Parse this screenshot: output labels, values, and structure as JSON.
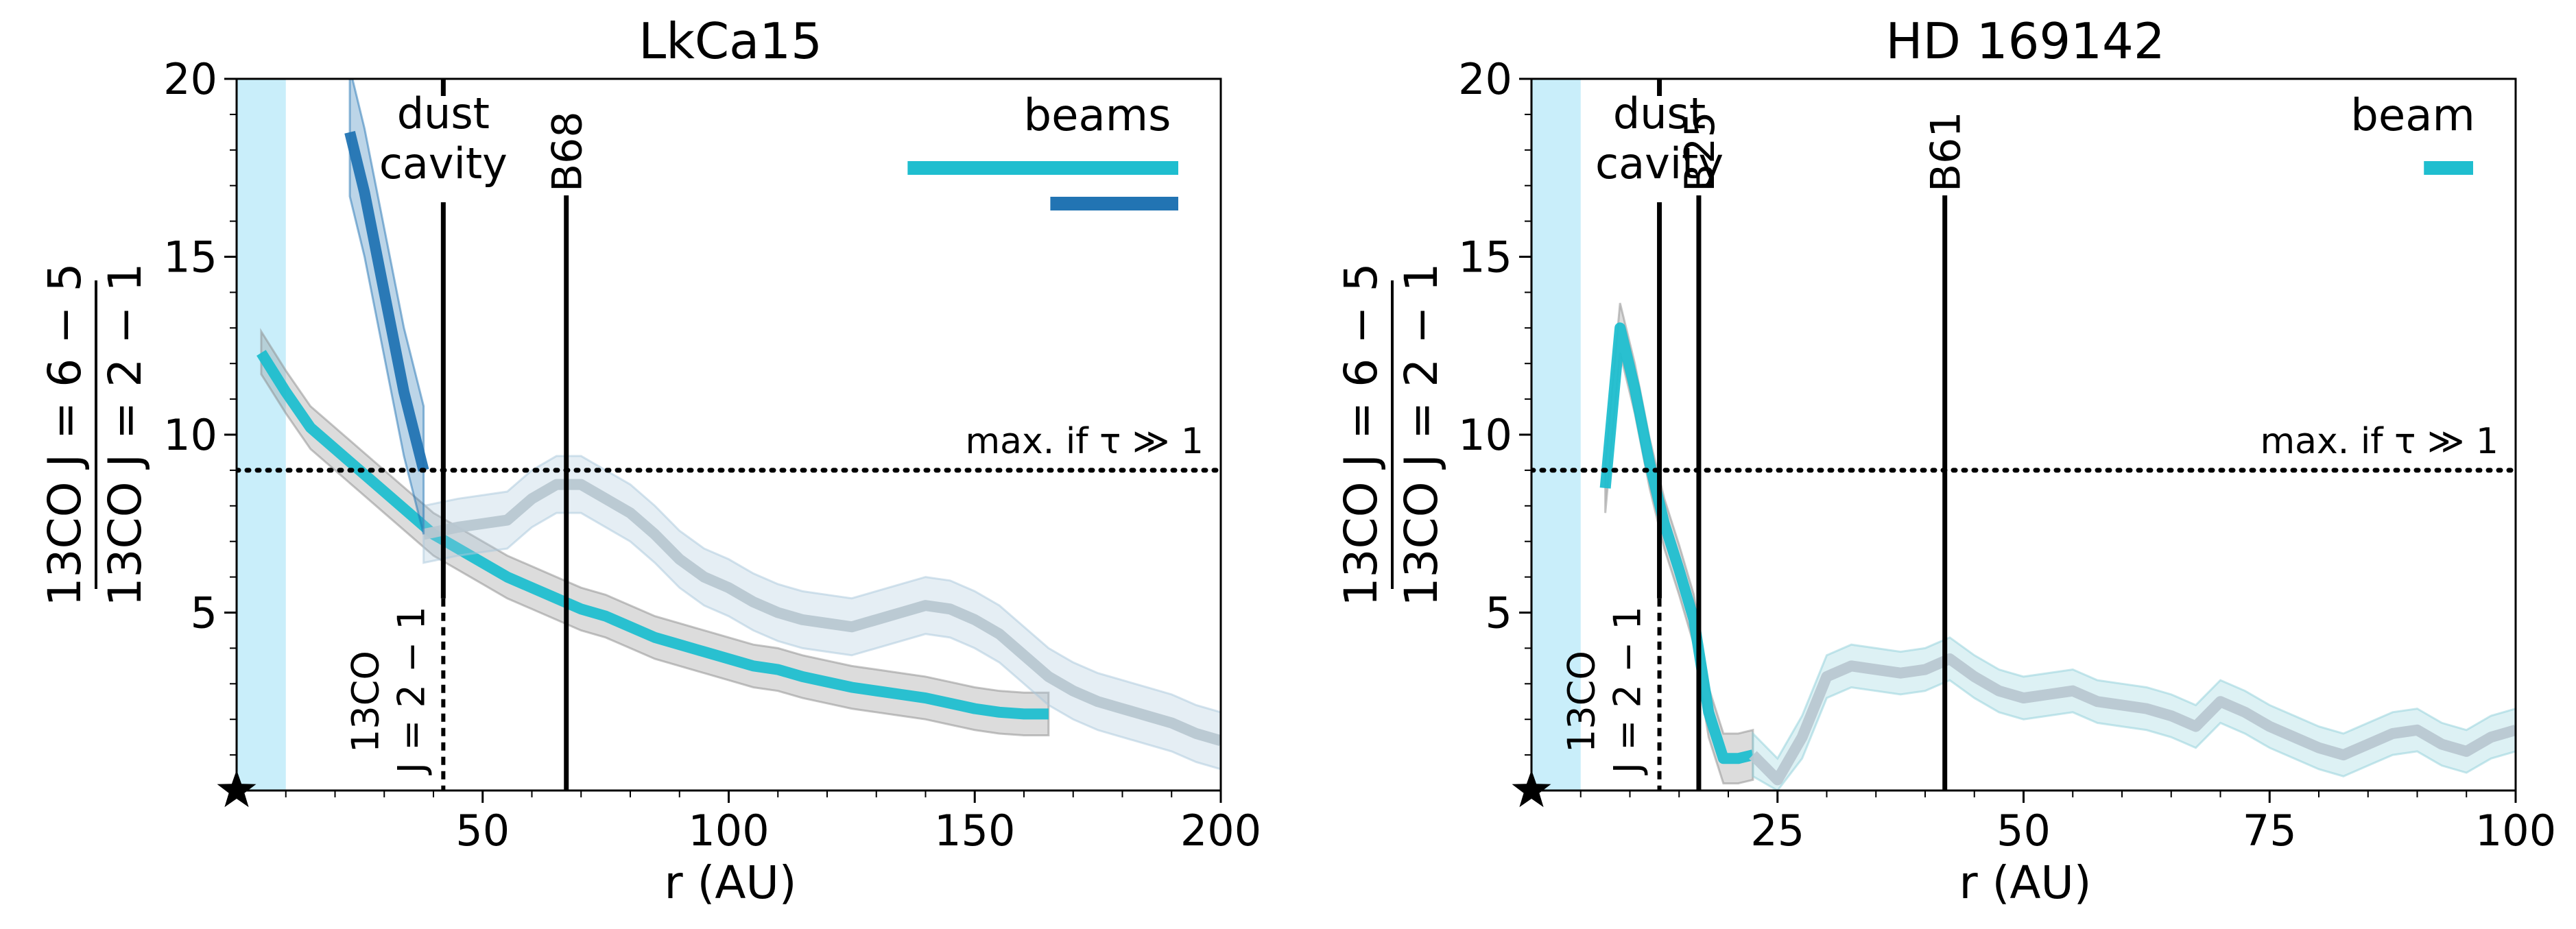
{
  "chart_data": [
    {
      "type": "line",
      "title": "LkCa15",
      "xlabel": "r (AU)",
      "ylabel_num": "13CO J = 6 − 5",
      "ylabel_den": "13CO J = 2 − 1",
      "xlim": [
        0,
        200
      ],
      "ylim": [
        0,
        20
      ],
      "xticks": [
        50,
        100,
        150,
        200
      ],
      "yticks": [
        5,
        10,
        15,
        20
      ],
      "shaded_region": {
        "x": [
          0,
          10
        ],
        "color": "#c9eefa"
      },
      "threshold": {
        "y": 9,
        "label": "max. if τ ≫ 1"
      },
      "beams_label": "beams",
      "beams": [
        {
          "width_au": 55,
          "color": "#1fbecf"
        },
        {
          "width_au": 26,
          "color": "#2274b3"
        }
      ],
      "annotations": [
        {
          "x": 42,
          "label_top": "dust cavity",
          "label_bottom": "13CO J = 2 − 1",
          "style": "solid-dotted"
        },
        {
          "x": 67,
          "label_top": "B68",
          "style": "solid"
        }
      ],
      "series": [
        {
          "name": "high-res cyan",
          "color": "#1fbecf",
          "band_color": "#8c8c8c",
          "x": [
            5,
            10,
            15,
            20,
            25,
            30,
            35,
            40,
            45,
            50,
            55,
            60,
            65,
            70,
            75,
            80,
            85,
            90,
            95,
            100,
            105,
            110,
            115,
            120,
            125,
            130,
            135,
            140,
            145,
            150,
            155,
            160,
            165
          ],
          "y": [
            12.3,
            11.2,
            10.2,
            9.6,
            9.0,
            8.4,
            7.8,
            7.2,
            6.8,
            6.4,
            6.0,
            5.7,
            5.4,
            5.1,
            4.9,
            4.6,
            4.3,
            4.1,
            3.9,
            3.7,
            3.5,
            3.4,
            3.2,
            3.05,
            2.9,
            2.8,
            2.7,
            2.6,
            2.45,
            2.3,
            2.2,
            2.15,
            2.15
          ],
          "err": 0.6
        },
        {
          "name": "low-res continuation",
          "color": "#b8c7d1",
          "band_color": "#a9c7dc",
          "x": [
            38,
            45,
            50,
            55,
            60,
            65,
            70,
            75,
            80,
            85,
            90,
            95,
            100,
            105,
            110,
            115,
            120,
            125,
            130,
            135,
            140,
            145,
            150,
            155,
            160,
            165,
            170,
            175,
            180,
            185,
            190,
            195,
            200
          ],
          "y": [
            7.2,
            7.4,
            7.5,
            7.6,
            8.2,
            8.6,
            8.6,
            8.2,
            7.8,
            7.2,
            6.5,
            6.0,
            5.7,
            5.3,
            5.0,
            4.8,
            4.7,
            4.6,
            4.8,
            5.0,
            5.2,
            5.1,
            4.8,
            4.4,
            3.8,
            3.2,
            2.8,
            2.5,
            2.3,
            2.1,
            1.9,
            1.6,
            1.4
          ],
          "err": 0.8
        },
        {
          "name": "low-res blue",
          "color": "#2274b3",
          "band_color": "#2274b3",
          "x": [
            23,
            26,
            30,
            34,
            38
          ],
          "y": [
            18.5,
            16.8,
            14.0,
            11.2,
            9.0
          ],
          "err": 1.8
        }
      ]
    },
    {
      "type": "line",
      "title": "HD 169142",
      "xlabel": "r (AU)",
      "ylabel_num": "13CO J = 6 − 5",
      "ylabel_den": "13CO J = 2 − 1",
      "xlim": [
        0,
        100
      ],
      "ylim": [
        0,
        20
      ],
      "xticks": [
        25,
        50,
        75,
        100
      ],
      "yticks": [
        5,
        10,
        15,
        20
      ],
      "shaded_region": {
        "x": [
          0,
          5
        ],
        "color": "#c9eefa"
      },
      "threshold": {
        "y": 9,
        "label": "max. if τ ≫ 1"
      },
      "beams_label": "beam",
      "beams": [
        {
          "width_au": 5,
          "color": "#1fbecf"
        }
      ],
      "annotations": [
        {
          "x": 13,
          "label_top": "dust cavity",
          "label_bottom": "13CO J = 2 − 1",
          "style": "solid-dotted"
        },
        {
          "x": 17,
          "label_top": "B25",
          "style": "solid"
        },
        {
          "x": 42,
          "label_top": "B61",
          "style": "solid"
        }
      ],
      "series": [
        {
          "name": "cyan",
          "color": "#1fbecf",
          "band_color": "#8c8c8c",
          "x": [
            7.5,
            9,
            10.5,
            12,
            13.5,
            15,
            16.5,
            18,
            19.5,
            21,
            22.5
          ],
          "y": [
            8.5,
            13.0,
            11.3,
            9.2,
            7.5,
            6.2,
            4.8,
            2.2,
            0.9,
            0.9,
            1.0
          ],
          "err": 0.7
        },
        {
          "name": "grey continuation",
          "color": "#b8c7d1",
          "band_color": "#8fd0da",
          "x": [
            22.5,
            25,
            27.5,
            30,
            32.5,
            35,
            37.5,
            40,
            42.5,
            45,
            47.5,
            50,
            52.5,
            55,
            57.5,
            60,
            62.5,
            65,
            67.5,
            70,
            72.5,
            75,
            77.5,
            80,
            82.5,
            85,
            87.5,
            90,
            92.5,
            95,
            97.5,
            100
          ],
          "y": [
            1.0,
            0.3,
            1.5,
            3.2,
            3.5,
            3.4,
            3.3,
            3.4,
            3.7,
            3.2,
            2.8,
            2.6,
            2.7,
            2.8,
            2.5,
            2.4,
            2.3,
            2.1,
            1.8,
            2.5,
            2.2,
            1.8,
            1.5,
            1.2,
            1.0,
            1.3,
            1.6,
            1.7,
            1.3,
            1.1,
            1.5,
            1.7
          ],
          "err": 0.6
        }
      ]
    }
  ]
}
